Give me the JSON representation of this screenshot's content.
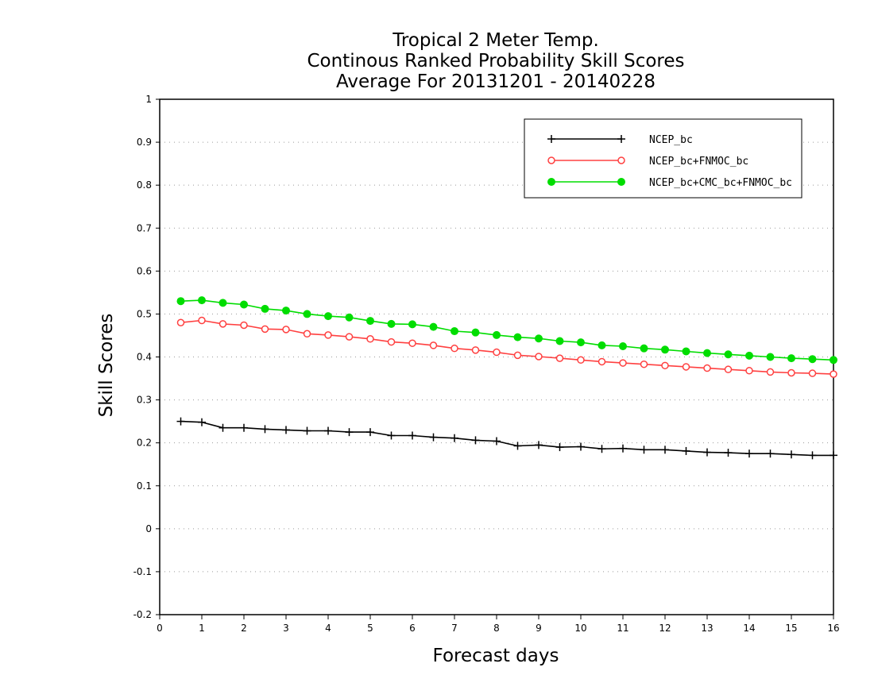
{
  "chart_data": {
    "type": "line",
    "title_lines": [
      "Tropical 2 Meter Temp.",
      "Continous Ranked Probability Skill Scores",
      "Average For 20131201 - 20140228"
    ],
    "xlabel": "Forecast days",
    "ylabel": "Skill Scores",
    "xlim": [
      0,
      16
    ],
    "ylim": [
      -0.2,
      1
    ],
    "x_ticks": [
      "0",
      "1",
      "2",
      "3",
      "4",
      "5",
      "6",
      "7",
      "8",
      "9",
      "10",
      "11",
      "12",
      "13",
      "14",
      "15",
      "16"
    ],
    "y_ticks": [
      "-0.2",
      "-0.1",
      "0",
      "0.1",
      "0.2",
      "0.3",
      "0.4",
      "0.5",
      "0.6",
      "0.7",
      "0.8",
      "0.9",
      "1"
    ],
    "y_tick_values": [
      -0.2,
      -0.1,
      0,
      0.1,
      0.2,
      0.3,
      0.4,
      0.5,
      0.6,
      0.7,
      0.8,
      0.9,
      1
    ],
    "grid": "horizontal dotted",
    "legend_position": "top-right",
    "x": [
      0.5,
      1,
      1.5,
      2,
      2.5,
      3,
      3.5,
      4,
      4.5,
      5,
      5.5,
      6,
      6.5,
      7,
      7.5,
      8,
      8.5,
      9,
      9.5,
      10,
      10.5,
      11,
      11.5,
      12,
      12.5,
      13,
      13.5,
      14,
      14.5,
      15,
      15.5,
      16
    ],
    "series": [
      {
        "name": "NCEP_bc",
        "color": "#000000",
        "marker": "plus",
        "values": [
          0.25,
          0.248,
          0.235,
          0.235,
          0.232,
          0.23,
          0.228,
          0.228,
          0.225,
          0.225,
          0.217,
          0.217,
          0.213,
          0.211,
          0.206,
          0.204,
          0.193,
          0.195,
          0.19,
          0.191,
          0.186,
          0.187,
          0.184,
          0.184,
          0.181,
          0.178,
          0.177,
          0.175,
          0.175,
          0.173,
          0.171,
          0.171
        ]
      },
      {
        "name": "NCEP_bc+FNMOC_bc",
        "color": "#ff4040",
        "marker": "open-circle",
        "values": [
          0.48,
          0.485,
          0.477,
          0.474,
          0.465,
          0.464,
          0.454,
          0.451,
          0.447,
          0.442,
          0.435,
          0.432,
          0.427,
          0.42,
          0.416,
          0.411,
          0.404,
          0.401,
          0.397,
          0.393,
          0.389,
          0.386,
          0.383,
          0.38,
          0.377,
          0.374,
          0.371,
          0.368,
          0.365,
          0.363,
          0.362,
          0.36
        ]
      },
      {
        "name": "NCEP_bc+CMC_bc+FNMOC_bc",
        "color": "#00dd00",
        "marker": "filled-circle",
        "values": [
          0.53,
          0.532,
          0.526,
          0.522,
          0.512,
          0.508,
          0.5,
          0.495,
          0.492,
          0.484,
          0.477,
          0.476,
          0.47,
          0.46,
          0.457,
          0.451,
          0.446,
          0.443,
          0.437,
          0.434,
          0.427,
          0.425,
          0.42,
          0.417,
          0.413,
          0.409,
          0.406,
          0.403,
          0.4,
          0.397,
          0.395,
          0.393
        ]
      }
    ]
  }
}
